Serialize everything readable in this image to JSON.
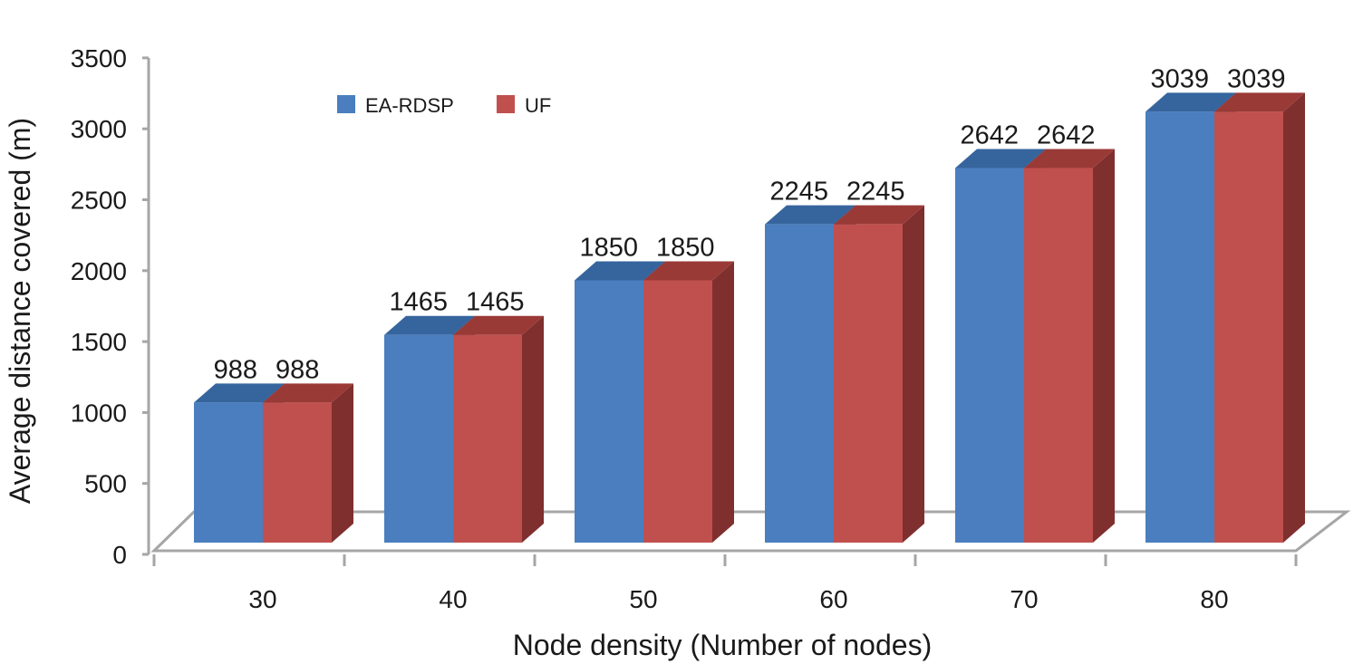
{
  "chart_data": {
    "type": "bar",
    "style": "3d-clustered-column",
    "title": "",
    "xlabel": "Node density (Number of nodes)",
    "ylabel": "Average distance covered (m)",
    "categories": [
      "30",
      "40",
      "50",
      "60",
      "70",
      "80"
    ],
    "series": [
      {
        "name": "EA-RDSP",
        "values": [
          988,
          1465,
          1850,
          2245,
          2642,
          3039
        ]
      },
      {
        "name": "UF",
        "values": [
          988,
          1465,
          1850,
          2245,
          2642,
          3039
        ]
      }
    ],
    "ylim": [
      0,
      3500
    ],
    "yticks": [
      "0",
      "500",
      "1000",
      "1500",
      "2000",
      "2500",
      "3000",
      "3500"
    ],
    "grid": false,
    "legend_position": "top-left",
    "data_labels": true
  },
  "colors": {
    "EA-RDSP": {
      "front": "#4a7ebf",
      "top": "#36659e",
      "side": "#2e5585"
    },
    "UF": {
      "front": "#c0504d",
      "top": "#9a3a37",
      "side": "#7f2f2e"
    },
    "axis": "#a6a6a6"
  }
}
